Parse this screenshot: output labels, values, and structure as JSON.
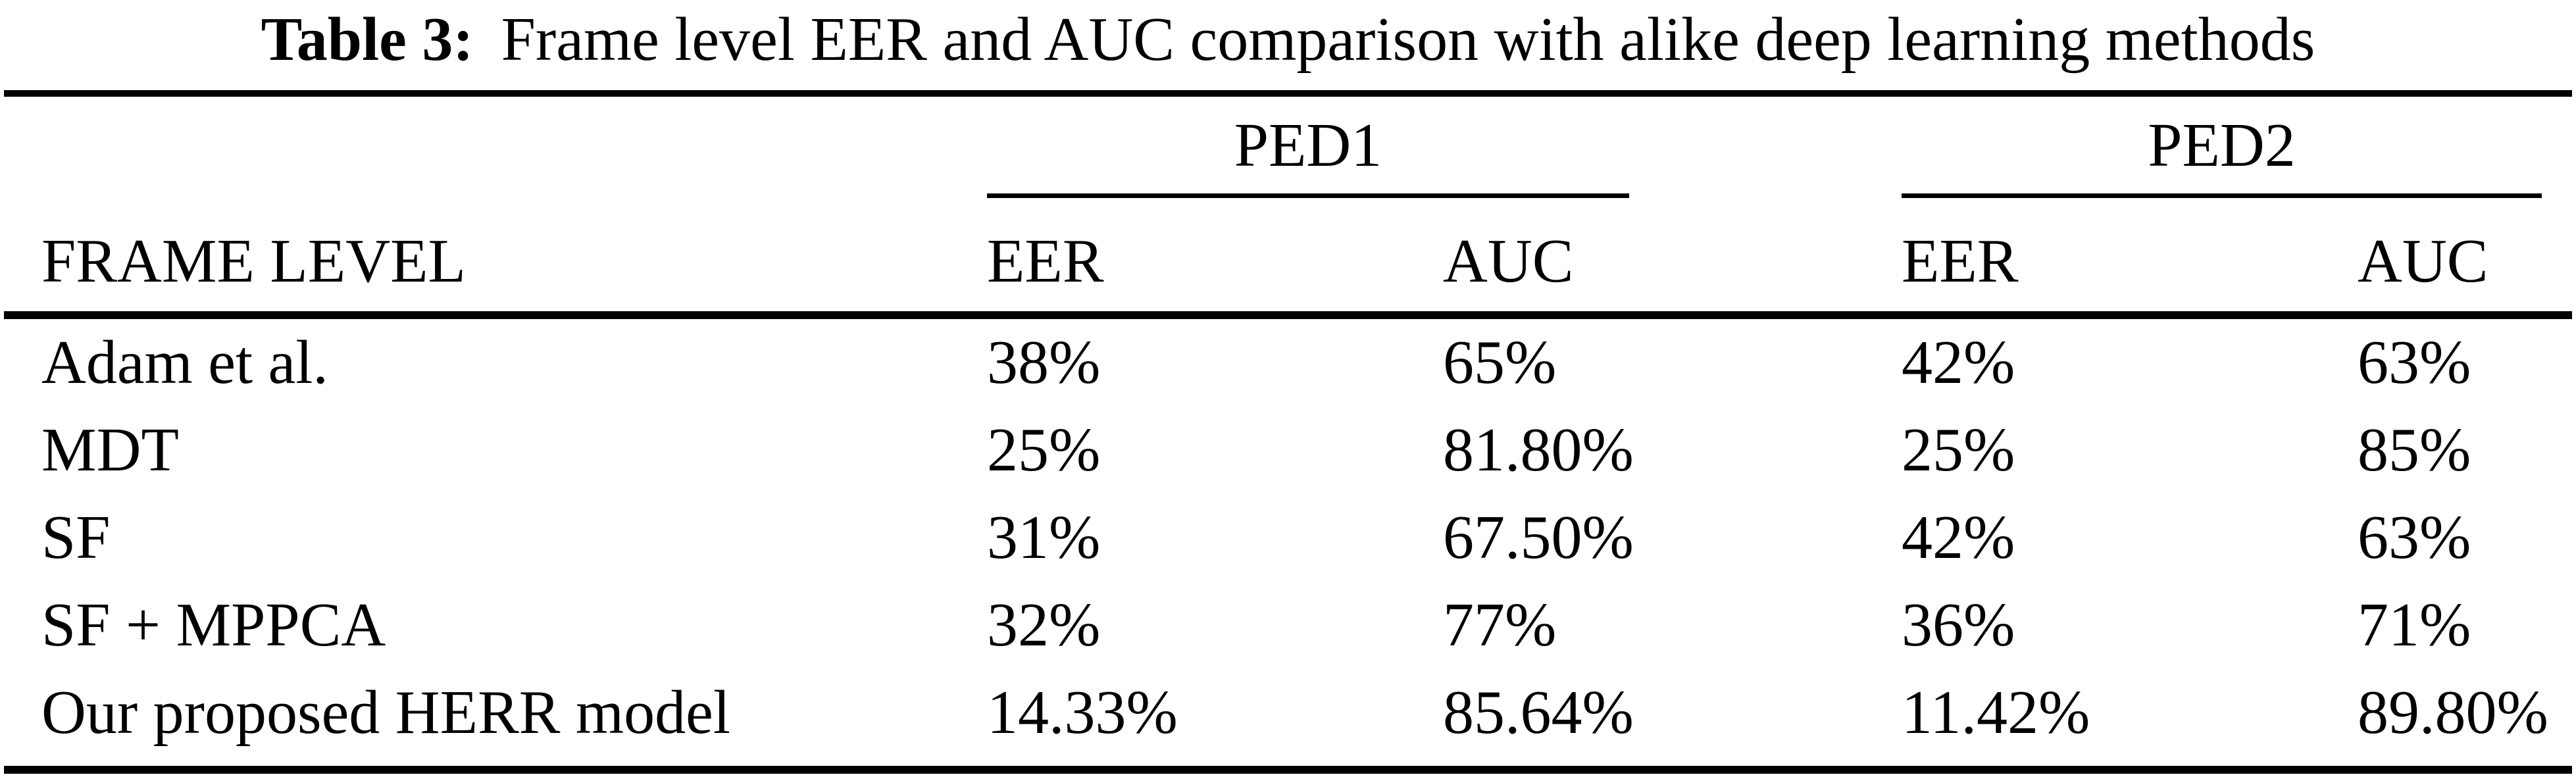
{
  "caption": {
    "label": "Table 3:",
    "text": "Frame level EER and AUC comparison with alike deep learning methods"
  },
  "table": {
    "stub_header": "FRAME LEVEL",
    "column_groups": [
      {
        "label": "PED1",
        "sub_columns": [
          "EER",
          "AUC"
        ]
      },
      {
        "label": "PED2",
        "sub_columns": [
          "EER",
          "AUC"
        ]
      }
    ],
    "rows": [
      {
        "method": "Adam et al.",
        "values": [
          "38%",
          "65%",
          "42%",
          "63%"
        ]
      },
      {
        "method": "MDT",
        "values": [
          "25%",
          "81.80%",
          "25%",
          "85%"
        ]
      },
      {
        "method": "SF",
        "values": [
          "31%",
          "67.50%",
          "42%",
          "63%"
        ]
      },
      {
        "method": "SF + MPPCA",
        "values": [
          "32%",
          "77%",
          "36%",
          "71%"
        ]
      },
      {
        "method": "Our proposed HERR model",
        "values": [
          "14.33%",
          "85.64%",
          "11.42%",
          "89.80%"
        ]
      }
    ]
  },
  "chart_data": {
    "type": "table",
    "title": "Table 3: Frame level EER and AUC comparison with alike deep learning methods",
    "columns": [
      "FRAME LEVEL",
      "PED1 EER",
      "PED1 AUC",
      "PED2 EER",
      "PED2 AUC"
    ],
    "rows": [
      [
        "Adam et al.",
        "38%",
        "65%",
        "42%",
        "63%"
      ],
      [
        "MDT",
        "25%",
        "81.80%",
        "25%",
        "85%"
      ],
      [
        "SF",
        "31%",
        "67.50%",
        "42%",
        "63%"
      ],
      [
        "SF + MPPCA",
        "32%",
        "77%",
        "36%",
        "71%"
      ],
      [
        "Our proposed HERR model",
        "14.33%",
        "85.64%",
        "11.42%",
        "89.80%"
      ]
    ]
  },
  "colors": {
    "text": "#000000",
    "background": "#ffffff",
    "rules": "#000000"
  }
}
